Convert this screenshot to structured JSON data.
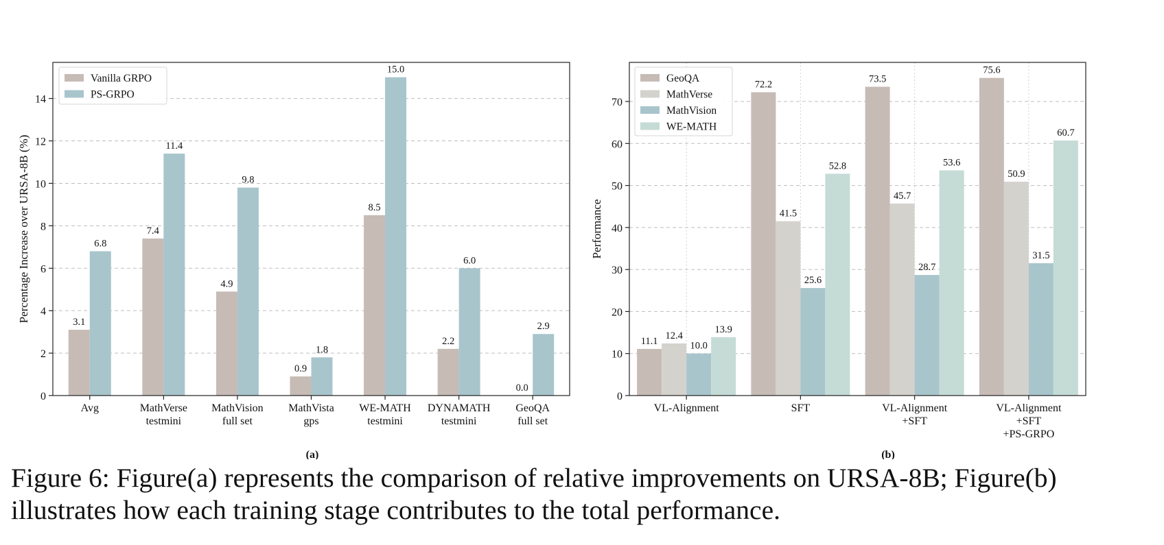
{
  "caption": {
    "line1": "Figure 6: Figure(a) represents the comparison of relative improvements on URSA-8B; Figure(b)",
    "line2": "illustrates how each training stage contributes to the total performance."
  },
  "chart_data": [
    {
      "type": "bar",
      "panel_label": "(a)",
      "ylabel": "Percentage Increase over URSA-8B (%)",
      "ylim": [
        0,
        15.7
      ],
      "yticks": [
        0,
        2,
        4,
        6,
        8,
        10,
        12,
        14
      ],
      "grid": "horizontal dashed",
      "legend": "top-left",
      "categories": [
        [
          "Avg"
        ],
        [
          "MathVerse",
          "testmini"
        ],
        [
          "MathVision",
          "full set"
        ],
        [
          "MathVista",
          "gps"
        ],
        [
          "WE-MATH",
          "testmini"
        ],
        [
          "DYNAMATH",
          "testmini"
        ],
        [
          "GeoQA",
          "full set"
        ]
      ],
      "series": [
        {
          "name": "Vanilla GRPO",
          "color": "#c7bbb6",
          "values": [
            3.1,
            7.4,
            4.9,
            0.9,
            8.5,
            2.2,
            0.0
          ],
          "labels": [
            "3.1",
            "7.4",
            "4.9",
            "0.9",
            "8.5",
            "2.2",
            "0.0"
          ]
        },
        {
          "name": "PS-GRPO",
          "color": "#a8c5cc",
          "values": [
            6.8,
            11.4,
            9.8,
            1.8,
            15.0,
            6.0,
            2.9
          ],
          "labels": [
            "6.8",
            "11.4",
            "9.8",
            "1.8",
            "15.0",
            "6.0",
            "2.9"
          ]
        }
      ]
    },
    {
      "type": "bar",
      "panel_label": "(b)",
      "ylabel": "Performance",
      "ylim": [
        0,
        79.3
      ],
      "yticks": [
        0,
        10,
        20,
        30,
        40,
        50,
        60,
        70
      ],
      "grid": "horizontal and vertical dashed",
      "legend": "top-left",
      "categories": [
        [
          "VL-Alignment"
        ],
        [
          "SFT"
        ],
        [
          "VL-Alignment",
          "+SFT"
        ],
        [
          "VL-Alignment",
          "+SFT",
          "+PS-GRPO"
        ]
      ],
      "series": [
        {
          "name": "GeoQA",
          "color": "#c7bbb6",
          "values": [
            11.1,
            72.2,
            73.5,
            75.6
          ],
          "labels": [
            "11.1",
            "72.2",
            "73.5",
            "75.6"
          ]
        },
        {
          "name": "MathVerse",
          "color": "#d4d2cd",
          "values": [
            12.4,
            41.5,
            45.7,
            50.9
          ],
          "labels": [
            "12.4",
            "41.5",
            "45.7",
            "50.9"
          ]
        },
        {
          "name": "MathVision",
          "color": "#a8c5cc",
          "values": [
            10.0,
            25.6,
            28.7,
            31.5
          ],
          "labels": [
            "10.0",
            "25.6",
            "28.7",
            "31.5"
          ]
        },
        {
          "name": "WE-MATH",
          "color": "#c5dbd6",
          "values": [
            13.9,
            52.8,
            53.6,
            60.7
          ],
          "labels": [
            "13.9",
            "52.8",
            "53.6",
            "60.7"
          ]
        }
      ]
    }
  ]
}
